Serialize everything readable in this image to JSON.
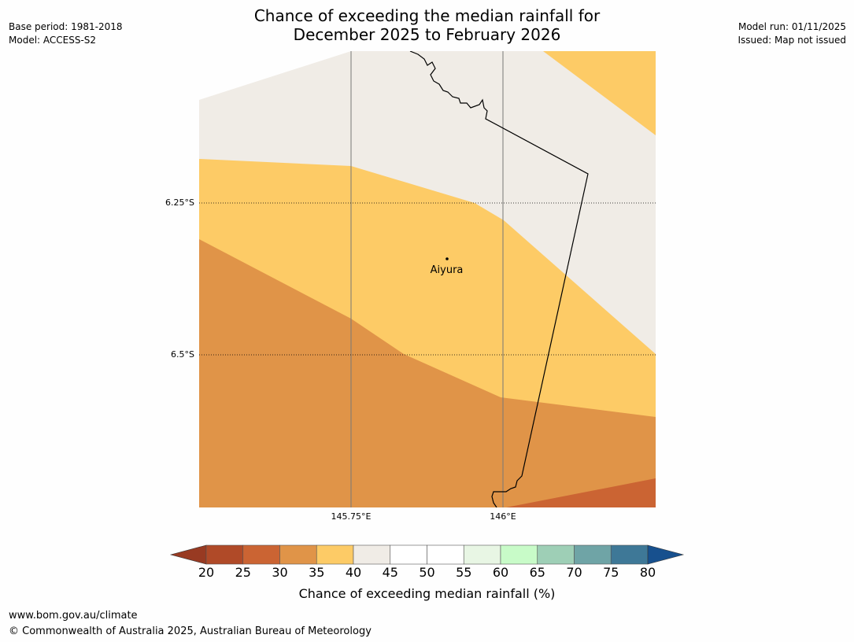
{
  "header": {
    "title_line1": "Chance of exceeding the median rainfall for",
    "title_line2": "December 2025 to February 2026",
    "base_period": "Base period: 1981-2018",
    "model": "Model: ACCESS-S2",
    "model_run": "Model run: 01/11/2025",
    "issued": "Issued: Map not issued"
  },
  "map": {
    "lat_labels": [
      "6.25°S",
      "6.5°S"
    ],
    "lon_labels": [
      "145.75°E",
      "146°E"
    ],
    "place": {
      "name": "Aiyura"
    },
    "colors": {
      "band_20_25": "#b04a28",
      "band_25_30": "#cb6433",
      "band_30_35": "#e09448",
      "band_35_40": "#fdcb66",
      "band_40_45": "#f0ece6",
      "border": "#000000"
    }
  },
  "colorbar": {
    "title": "Chance of exceeding median rainfall (%)",
    "tick_labels": [
      "20",
      "25",
      "30",
      "35",
      "40",
      "45",
      "50",
      "55",
      "60",
      "65",
      "70",
      "75",
      "80"
    ],
    "colors": [
      "#b04a28",
      "#cb6433",
      "#e09448",
      "#fdcb66",
      "#f0ece6",
      "#ffffff",
      "#ffffff",
      "#e8f6e4",
      "#c8fbc8",
      "#9ecfb6",
      "#6fa4a6",
      "#3e7897"
    ],
    "under_color": "#983a22",
    "over_color": "#17508e"
  },
  "footer": {
    "url": "www.bom.gov.au/climate",
    "copyright": "© Commonwealth of Australia 2025, Australian Bureau of Meteorology"
  }
}
